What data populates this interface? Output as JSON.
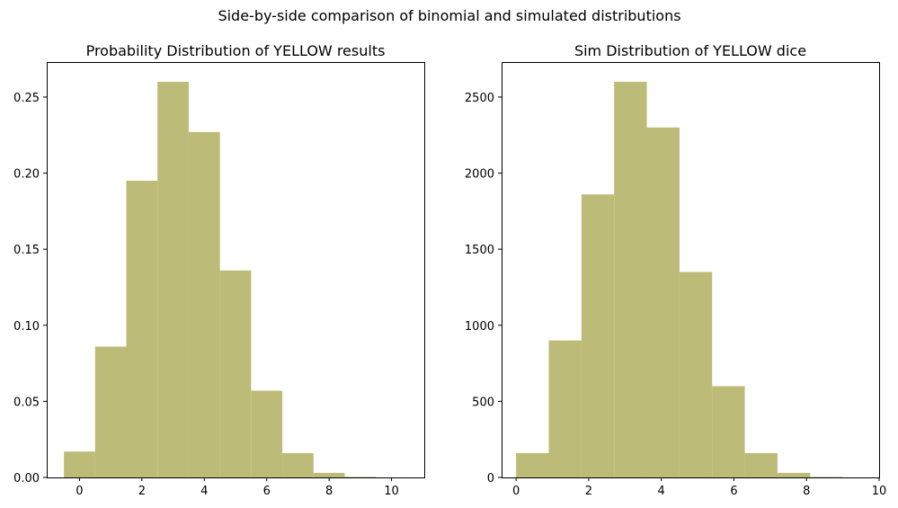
{
  "figure": {
    "suptitle": "Side-by-side comparison of binomial and simulated distributions",
    "bar_color": "#bcbb77"
  },
  "chart_data": [
    {
      "type": "bar",
      "title": "Probability Distribution of YELLOW results",
      "xlabel": "",
      "ylabel": "",
      "xlim": [
        -1.05,
        11.05
      ],
      "ylim": [
        0,
        0.273
      ],
      "xticks": [
        0,
        2,
        4,
        6,
        8,
        10
      ],
      "xtick_labels": [
        "0",
        "2",
        "4",
        "6",
        "8",
        "10"
      ],
      "yticks": [
        0.0,
        0.05,
        0.1,
        0.15,
        0.2,
        0.25
      ],
      "ytick_labels": [
        "0.00",
        "0.05",
        "0.10",
        "0.15",
        "0.20",
        "0.25"
      ],
      "bars": [
        {
          "x0": -0.5,
          "x1": 0.5,
          "value": 0.017
        },
        {
          "x0": 0.5,
          "x1": 1.5,
          "value": 0.086
        },
        {
          "x0": 1.5,
          "x1": 2.5,
          "value": 0.195
        },
        {
          "x0": 2.5,
          "x1": 3.5,
          "value": 0.26
        },
        {
          "x0": 3.5,
          "x1": 4.5,
          "value": 0.227
        },
        {
          "x0": 4.5,
          "x1": 5.5,
          "value": 0.136
        },
        {
          "x0": 5.5,
          "x1": 6.5,
          "value": 0.057
        },
        {
          "x0": 6.5,
          "x1": 7.5,
          "value": 0.016
        },
        {
          "x0": 7.5,
          "x1": 8.5,
          "value": 0.003
        },
        {
          "x0": 8.5,
          "x1": 9.5,
          "value": 0.0004
        },
        {
          "x0": 9.5,
          "x1": 10.5,
          "value": 3e-05
        }
      ]
    },
    {
      "type": "bar",
      "title": "Sim Distribution of YELLOW dice",
      "xlabel": "",
      "ylabel": "",
      "xlim": [
        -0.4,
        10
      ],
      "ylim": [
        0,
        2730
      ],
      "xticks": [
        0,
        2,
        4,
        6,
        8,
        10
      ],
      "xtick_labels": [
        "0",
        "2",
        "4",
        "6",
        "8",
        "10"
      ],
      "yticks": [
        0,
        500,
        1000,
        1500,
        2000,
        2500
      ],
      "ytick_labels": [
        "0",
        "500",
        "1000",
        "1500",
        "2000",
        "2500"
      ],
      "bars": [
        {
          "x0": 0.0,
          "x1": 0.9,
          "value": 160
        },
        {
          "x0": 0.9,
          "x1": 1.8,
          "value": 900
        },
        {
          "x0": 1.8,
          "x1": 2.7,
          "value": 1860
        },
        {
          "x0": 2.7,
          "x1": 3.6,
          "value": 2600
        },
        {
          "x0": 3.6,
          "x1": 4.5,
          "value": 2300
        },
        {
          "x0": 4.5,
          "x1": 5.4,
          "value": 1350
        },
        {
          "x0": 5.4,
          "x1": 6.3,
          "value": 600
        },
        {
          "x0": 6.3,
          "x1": 7.2,
          "value": 160
        },
        {
          "x0": 7.2,
          "x1": 8.1,
          "value": 30
        },
        {
          "x0": 8.1,
          "x1": 9.0,
          "value": 3
        }
      ]
    }
  ]
}
